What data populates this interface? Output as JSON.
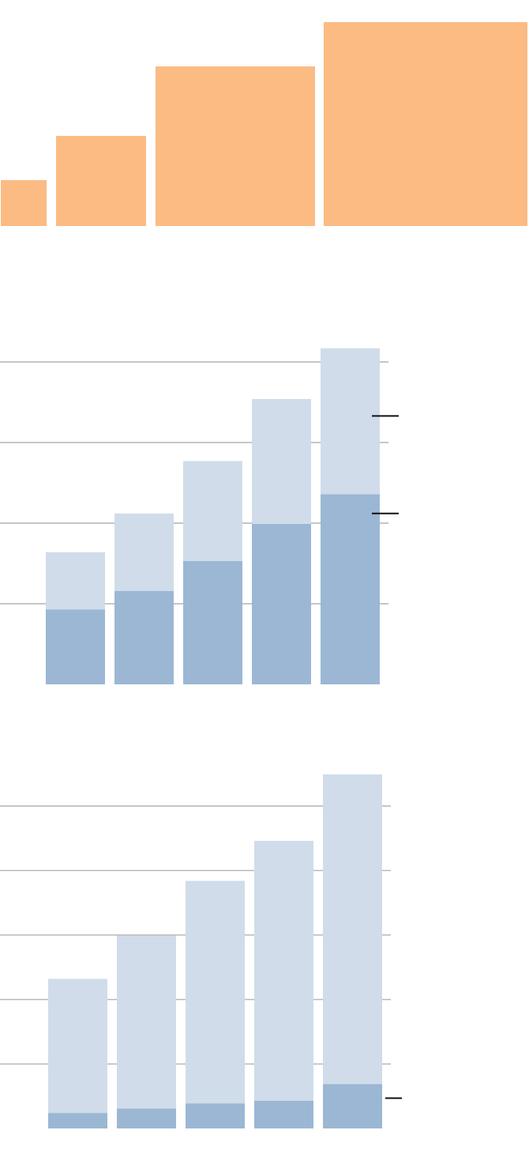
{
  "colors": {
    "orange": "#fbbb83",
    "blue_dark": "#9bb7d4",
    "blue_light": "#d0dcea",
    "gridline": "#b3b3b3",
    "marker": "#111111"
  },
  "chart_data": [
    {
      "type": "bar",
      "title": "",
      "xlabel": "",
      "ylabel": "",
      "grid": false,
      "legend": "none",
      "categories": [
        "",
        "",
        "",
        ""
      ],
      "widths": [
        58,
        114,
        202,
        258
      ],
      "values": [
        58,
        114,
        202,
        258
      ],
      "ylim": [
        0,
        270
      ],
      "color": "#fbbb83"
    },
    {
      "type": "bar",
      "stacked": true,
      "title": "",
      "xlabel": "",
      "ylabel": "",
      "grid": true,
      "legend": "none",
      "ylim": [
        0,
        4.2
      ],
      "gridlines": [
        1,
        2,
        3,
        4
      ],
      "categories": [
        "",
        "",
        "",
        "",
        ""
      ],
      "series": [
        {
          "values": [
            0.93,
            1.16,
            1.53,
            1.99,
            2.36
          ],
          "color": "#9bb7d4"
        },
        {
          "values": [
            0.71,
            0.96,
            1.24,
            1.55,
            1.81
          ],
          "color": "#d0dcea"
        }
      ],
      "markers": [
        3.33,
        2.12
      ]
    },
    {
      "type": "bar",
      "stacked": true,
      "title": "",
      "xlabel": "",
      "ylabel": "",
      "grid": true,
      "legend": "none",
      "ylim": [
        0,
        5.5
      ],
      "gridlines": [
        1,
        2,
        3,
        4,
        5
      ],
      "categories": [
        "",
        "",
        "",
        "",
        ""
      ],
      "series": [
        {
          "values": [
            0.24,
            0.31,
            0.39,
            0.43,
            0.69
          ],
          "color": "#9bb7d4"
        },
        {
          "values": [
            2.08,
            2.68,
            3.45,
            4.03,
            4.8
          ],
          "color": "#d0dcea"
        }
      ],
      "markers": [
        0.47
      ]
    }
  ]
}
